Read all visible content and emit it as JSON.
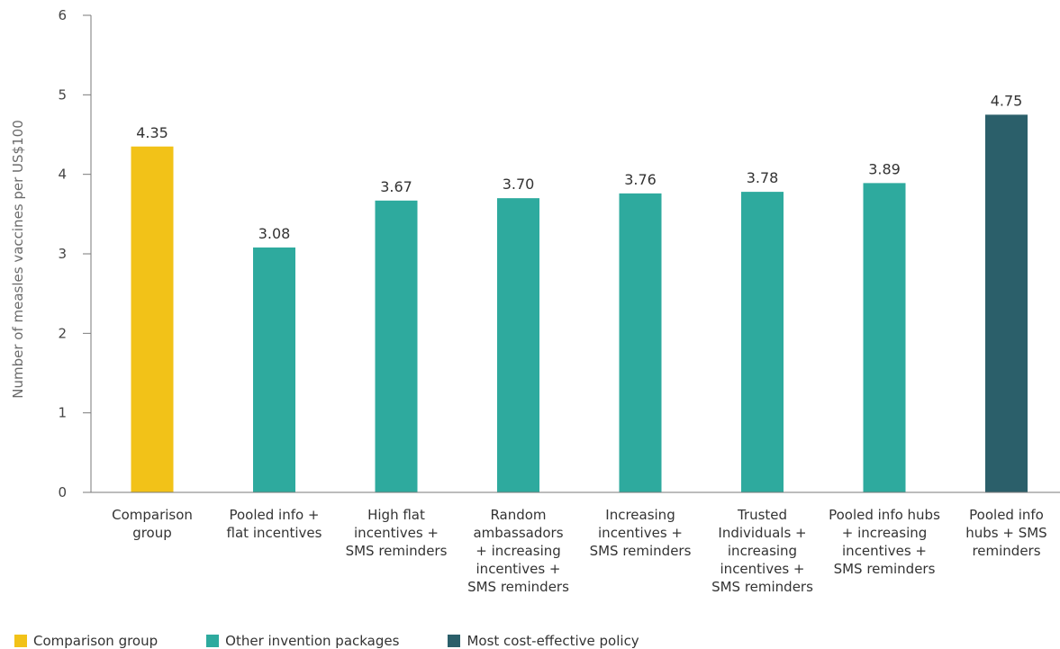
{
  "chart_data": {
    "type": "bar",
    "title": "",
    "xlabel": "",
    "ylabel": "Number of measles vaccines per US$100",
    "ylim": [
      0,
      6
    ],
    "yticks": [
      0,
      1,
      2,
      3,
      4,
      5,
      6
    ],
    "grid": false,
    "legend_position": "bottom-left",
    "categories": [
      [
        "Comparison",
        "group"
      ],
      [
        "Pooled info +",
        "flat incentives"
      ],
      [
        "High flat",
        "incentives +",
        "SMS reminders"
      ],
      [
        "Random",
        "ambassadors",
        "+ increasing",
        "incentives +",
        "SMS reminders"
      ],
      [
        "Increasing",
        "incentives +",
        "SMS reminders"
      ],
      [
        "Trusted",
        "Individuals +",
        "increasing",
        "incentives +",
        "SMS reminders"
      ],
      [
        "Pooled info hubs",
        "+ increasing",
        "incentives +",
        "SMS reminders"
      ],
      [
        "Pooled info",
        "hubs + SMS",
        "reminders"
      ]
    ],
    "values": [
      4.35,
      3.08,
      3.67,
      3.7,
      3.76,
      3.78,
      3.89,
      4.75
    ],
    "value_labels": [
      "4.35",
      "3.08",
      "3.67",
      "3.70",
      "3.76",
      "3.78",
      "3.89",
      "4.75"
    ],
    "bar_groups": [
      "comparison",
      "other",
      "other",
      "other",
      "other",
      "other",
      "other",
      "best"
    ],
    "legend": [
      {
        "key": "comparison",
        "label": "Comparison group",
        "color": "#f2c218"
      },
      {
        "key": "other",
        "label": "Other invention packages",
        "color": "#2eaa9e"
      },
      {
        "key": "best",
        "label": "Most cost-effective policy",
        "color": "#2b5f6a"
      }
    ]
  }
}
